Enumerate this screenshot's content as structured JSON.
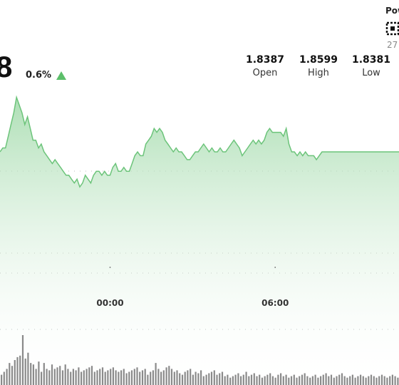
{
  "header": {
    "price_fragment": "8",
    "change": "0.6%",
    "powered_fragment": "Pow",
    "date_fragment": "27",
    "logo_icon": "broker-logo-icon",
    "arrow_icon": "triangle-up-icon"
  },
  "stats": [
    {
      "value": "1.8387",
      "label": "Open"
    },
    {
      "value": "1.8599",
      "label": "High"
    },
    {
      "value": "1.8381",
      "label": "Low"
    }
  ],
  "colors": {
    "accent": "#5cbf6a",
    "line": "#6cc47a",
    "fill_top": "#9fd9a8",
    "volume": "#8a8a8a"
  },
  "chart_data": {
    "type": "area",
    "x_ticks": [
      "00:00",
      "06:00"
    ],
    "x_tick_positions": [
      6,
      12
    ],
    "x_range": [
      2,
      16.5
    ],
    "ylim": [
      1.83,
      1.862
    ],
    "grid": "dotted horizontal",
    "series": [
      {
        "x": [
          2.0,
          2.1,
          2.2,
          2.3,
          2.4,
          2.5,
          2.6,
          2.7,
          2.8,
          2.9,
          3.0,
          3.1,
          3.2,
          3.3,
          3.4,
          3.5,
          3.6,
          3.7,
          3.8,
          3.9,
          4.0,
          4.1,
          4.2,
          4.3,
          4.4,
          4.5,
          4.6,
          4.7,
          4.8,
          4.9,
          5.0,
          5.1,
          5.2,
          5.3,
          5.4,
          5.5,
          5.6,
          5.7,
          5.8,
          5.9,
          6.0,
          6.1,
          6.2,
          6.3,
          6.4,
          6.5,
          6.6,
          6.7,
          6.8,
          6.9,
          7.0,
          7.1,
          7.2,
          7.3,
          7.4,
          7.5,
          7.6,
          7.7,
          7.8,
          7.9,
          8.0,
          8.1,
          8.2,
          8.3,
          8.4,
          8.5,
          8.6,
          8.7,
          8.8,
          8.9,
          9.0,
          9.1,
          9.2,
          9.3,
          9.4,
          9.5,
          9.6,
          9.7,
          9.8,
          9.9,
          10.0,
          10.1,
          10.2,
          10.3,
          10.4,
          10.5,
          10.6,
          10.7,
          10.8,
          10.9,
          11.0,
          11.1,
          11.2,
          11.3,
          11.4,
          11.5,
          11.6,
          11.7,
          11.8,
          11.9,
          12.0,
          12.1,
          12.2,
          12.3,
          12.4,
          12.5,
          12.6,
          12.7,
          12.8,
          12.9,
          13.0,
          13.1,
          13.2,
          13.3,
          13.4,
          13.5,
          13.6,
          13.7,
          13.8,
          13.9,
          14.0,
          14.1,
          14.2,
          14.3,
          14.4,
          14.5,
          14.6,
          14.7,
          14.8,
          14.9,
          15.0,
          15.1,
          15.2,
          15.3,
          15.4,
          15.5,
          15.6,
          15.7,
          15.8,
          15.9,
          16.0,
          16.1,
          16.2,
          16.3,
          16.4,
          16.5
        ],
        "values": [
          1.845,
          1.846,
          1.846,
          1.849,
          1.852,
          1.855,
          1.859,
          1.857,
          1.855,
          1.852,
          1.854,
          1.851,
          1.848,
          1.848,
          1.846,
          1.847,
          1.845,
          1.844,
          1.843,
          1.842,
          1.843,
          1.842,
          1.841,
          1.84,
          1.839,
          1.839,
          1.838,
          1.837,
          1.838,
          1.836,
          1.837,
          1.839,
          1.838,
          1.837,
          1.839,
          1.84,
          1.84,
          1.839,
          1.84,
          1.839,
          1.839,
          1.841,
          1.842,
          1.84,
          1.84,
          1.841,
          1.84,
          1.84,
          1.842,
          1.844,
          1.845,
          1.844,
          1.844,
          1.847,
          1.848,
          1.849,
          1.851,
          1.85,
          1.851,
          1.85,
          1.848,
          1.847,
          1.846,
          1.845,
          1.846,
          1.845,
          1.845,
          1.844,
          1.843,
          1.843,
          1.844,
          1.845,
          1.845,
          1.846,
          1.847,
          1.846,
          1.845,
          1.846,
          1.845,
          1.845,
          1.846,
          1.845,
          1.845,
          1.846,
          1.847,
          1.848,
          1.847,
          1.846,
          1.844,
          1.845,
          1.846,
          1.847,
          1.848,
          1.847,
          1.848,
          1.847,
          1.848,
          1.85,
          1.851,
          1.85,
          1.85,
          1.85,
          1.85,
          1.849,
          1.851,
          1.847,
          1.845,
          1.845,
          1.844,
          1.845,
          1.844,
          1.845,
          1.844,
          1.844,
          1.844,
          1.843,
          1.844,
          1.845,
          1.845,
          1.845,
          1.845,
          1.845,
          1.845,
          1.845,
          1.845,
          1.845,
          1.845,
          1.845,
          1.845,
          1.845,
          1.845,
          1.845,
          1.845,
          1.845,
          1.845,
          1.845,
          1.845,
          1.845,
          1.845,
          1.845,
          1.845,
          1.845,
          1.845,
          1.845,
          1.845,
          1.845
        ]
      }
    ],
    "volume": [
      14,
      18,
      22,
      30,
      26,
      34,
      38,
      40,
      68,
      36,
      44,
      30,
      28,
      22,
      32,
      18,
      30,
      22,
      20,
      28,
      22,
      24,
      26,
      20,
      28,
      22,
      18,
      22,
      20,
      24,
      18,
      20,
      22,
      24,
      26,
      18,
      20,
      22,
      24,
      18,
      20,
      22,
      24,
      20,
      18,
      20,
      22,
      16,
      18,
      20,
      22,
      24,
      18,
      20,
      22,
      14,
      18,
      20,
      30,
      22,
      18,
      20,
      24,
      26,
      22,
      18,
      20,
      16,
      14,
      18,
      20,
      22,
      14,
      18,
      16,
      20,
      12,
      14,
      16,
      18,
      20,
      14,
      16,
      18,
      12,
      14,
      10,
      12,
      14,
      16,
      12,
      14,
      18,
      12,
      14,
      16,
      12,
      14,
      10,
      12,
      14,
      16,
      12,
      10,
      14,
      16,
      12,
      14,
      10,
      12,
      14,
      10,
      12,
      14,
      16,
      12,
      10,
      12,
      14,
      10,
      12,
      14,
      16,
      12,
      14,
      10,
      12,
      14,
      16,
      12,
      10,
      12,
      14,
      10,
      12,
      14,
      12,
      10,
      12,
      14,
      12,
      10,
      12,
      14,
      12,
      10,
      12,
      14,
      12,
      10
    ]
  }
}
